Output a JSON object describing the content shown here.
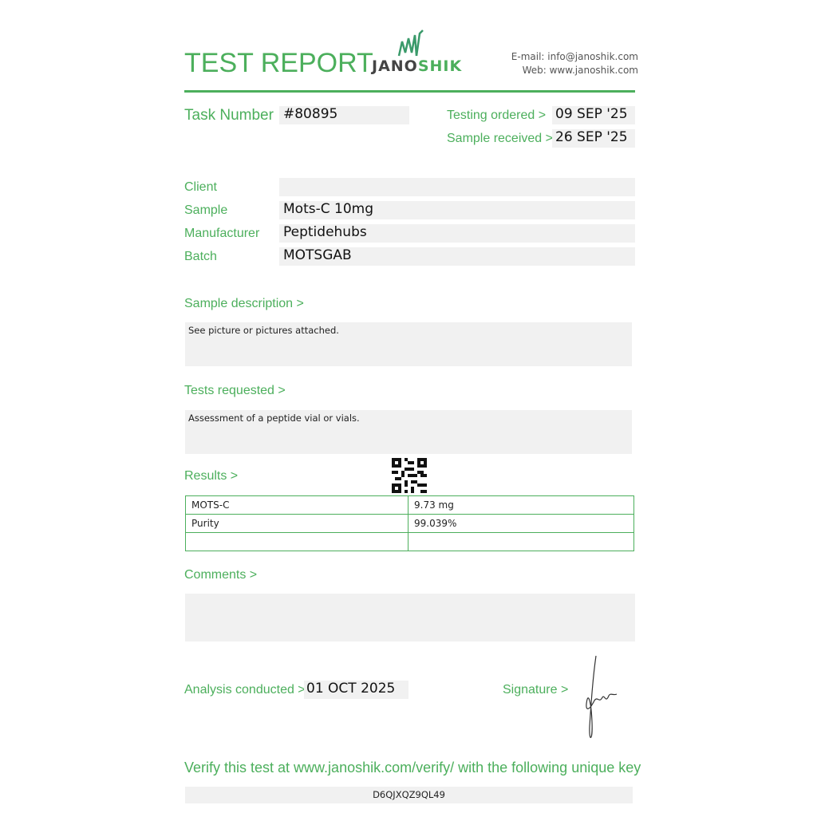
{
  "header": {
    "title": "TEST REPORT",
    "logo_text_dark": "JANO",
    "logo_text_green": "SHIK",
    "email": "E-mail: info@janoshik.com",
    "web": "Web: www.janoshik.com"
  },
  "task": {
    "label": "Task Number",
    "value": "#80895"
  },
  "dates": {
    "ordered_label": "Testing ordered  >",
    "ordered_value": "09 SEP '25",
    "received_label": "Sample received >",
    "received_value": "26 SEP '25"
  },
  "fields": [
    {
      "label": "Client",
      "value": ""
    },
    {
      "label": "Sample",
      "value": "Mots-C 10mg"
    },
    {
      "label": "Manufacturer",
      "value": "Peptidehubs"
    },
    {
      "label": "Batch",
      "value": "MOTSGAB"
    }
  ],
  "sample_description": {
    "label": "Sample description >",
    "value": "See picture or pictures attached."
  },
  "tests_requested": {
    "label": "Tests requested >",
    "value": "Assessment of a peptide vial or vials."
  },
  "results": {
    "label": "Results >",
    "rows": [
      [
        "MOTS-C",
        "9.73 mg"
      ],
      [
        "Purity",
        "99.039%"
      ],
      [
        "",
        ""
      ]
    ]
  },
  "comments": {
    "label": "Comments >",
    "value": ""
  },
  "analysis": {
    "label": "Analysis conducted >",
    "value": "01 OCT 2025"
  },
  "signature": {
    "label": "Signature >"
  },
  "verify": {
    "text": "Verify this test at www.janoshik.com/verify/ with the following unique key",
    "key": "D6QJXQZ9QL49"
  },
  "colors": {
    "accent": "#4caf5c",
    "field_bg": "#f1f1f1"
  }
}
